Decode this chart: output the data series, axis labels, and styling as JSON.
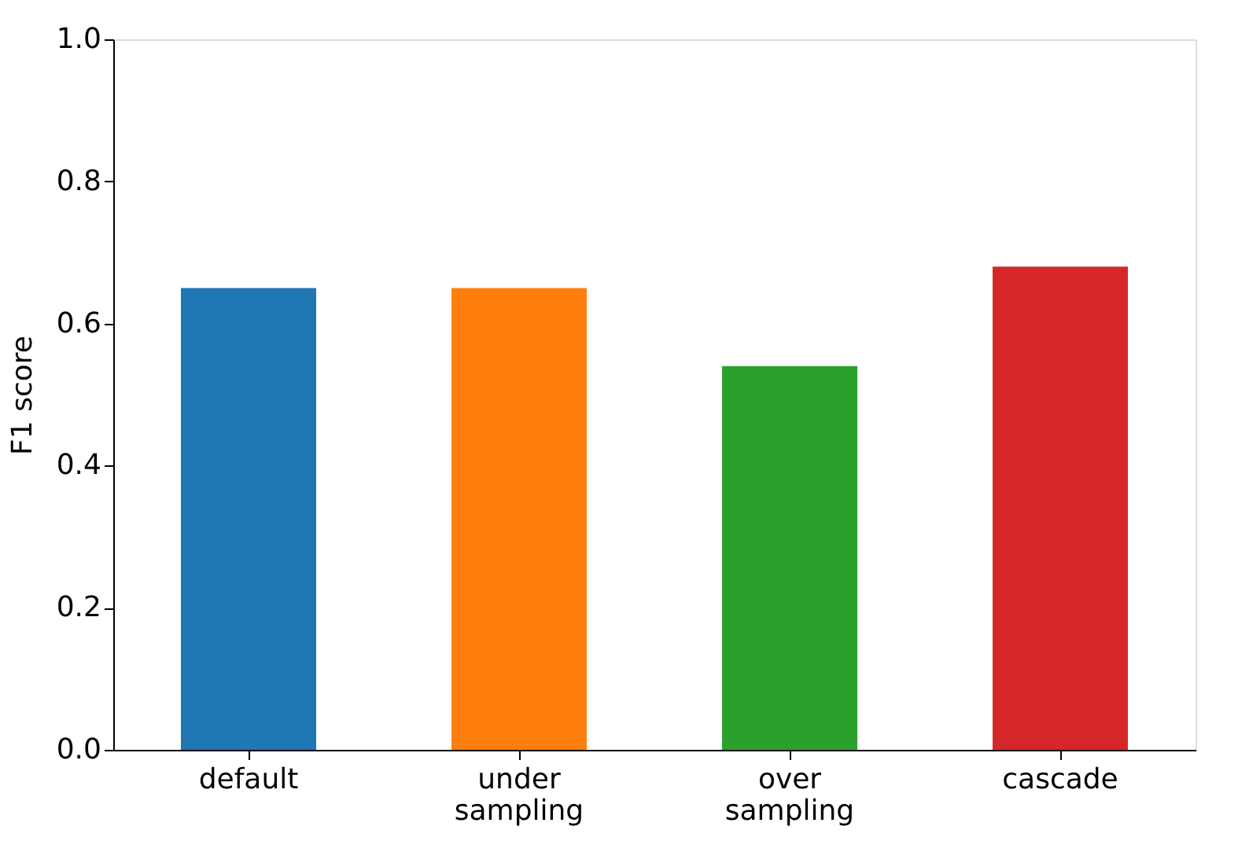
{
  "chart_data": {
    "type": "bar",
    "categories": [
      "default",
      "under sampling",
      "over sampling",
      "cascade"
    ],
    "values": [
      0.65,
      0.65,
      0.54,
      0.68
    ],
    "colors": [
      "#1f77b4",
      "#ff7f0e",
      "#2ca02c",
      "#d62728"
    ],
    "ylabel": "F1 score",
    "ylim": [
      0,
      1.0
    ],
    "yticks": [
      {
        "value": 0,
        "label": "0.0"
      },
      {
        "value": 0.2,
        "label": "0.2"
      },
      {
        "value": 0.4,
        "label": "0.4"
      },
      {
        "value": 0.6,
        "label": "0.6"
      },
      {
        "value": 0.8,
        "label": "0.8"
      },
      {
        "value": 1.0,
        "label": "1.0"
      }
    ],
    "grid": false,
    "legend": false
  }
}
